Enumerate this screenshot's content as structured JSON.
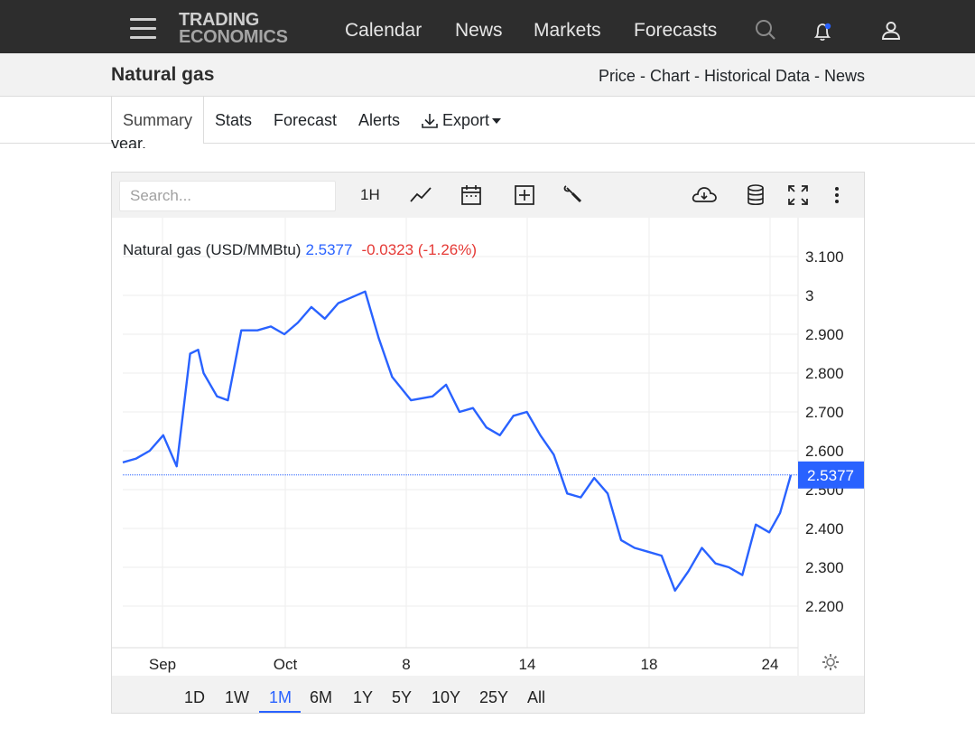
{
  "brand": {
    "line1": "TRADING",
    "line2": "ECONOMICS"
  },
  "nav": {
    "items": [
      "Calendar",
      "News",
      "Markets",
      "Forecasts"
    ]
  },
  "icons": {
    "menu": "hamburger-menu-icon",
    "search": "search-icon",
    "notifications": "bell-icon",
    "account": "user-icon"
  },
  "page": {
    "title": "Natural gas",
    "sublinks": "Price - Chart - Historical Data - News",
    "partial_text": "year."
  },
  "tabs": {
    "summary": "Summary",
    "stats": "Stats",
    "forecast": "Forecast",
    "alerts": "Alerts",
    "export": "Export"
  },
  "toolbar": {
    "search_placeholder": "Search...",
    "interval": "1H"
  },
  "legend": {
    "name": "Natural gas (USD/MMBtu)",
    "price": "2.5377",
    "change": "-0.0323 (-1.26%)"
  },
  "ranges": {
    "items": [
      "1D",
      "1W",
      "1M",
      "6M",
      "1Y",
      "5Y",
      "10Y",
      "25Y",
      "All"
    ],
    "active": "1M"
  },
  "colors": {
    "line": "#2962ff",
    "negative": "#e53935",
    "nav_bg": "#2d2d2d",
    "accent": "#2962ff"
  },
  "chart_data": {
    "type": "line",
    "series": [
      {
        "name": "Natural gas (USD/MMBtu)",
        "x": [
          0,
          0.5,
          1,
          1.5,
          2,
          2.5,
          2.8,
          3,
          3.5,
          3.9,
          4.4,
          5,
          5.5,
          6,
          6.5,
          7,
          7.5,
          8,
          9,
          9.5,
          10,
          10.7,
          11.5,
          12,
          12.5,
          13,
          13.5,
          14,
          14.5,
          15,
          15.5,
          16,
          16.5,
          17,
          17.5,
          18,
          18.5,
          19,
          19.5,
          20,
          20.5,
          21,
          21.5,
          22,
          22.5,
          23,
          23.5,
          24,
          24.4,
          24.8
        ],
        "values": [
          2.57,
          2.58,
          2.6,
          2.64,
          2.56,
          2.85,
          2.86,
          2.8,
          2.74,
          2.73,
          2.91,
          2.91,
          2.92,
          2.9,
          2.93,
          2.97,
          2.94,
          2.98,
          3.01,
          2.89,
          2.79,
          2.73,
          2.74,
          2.77,
          2.7,
          2.71,
          2.66,
          2.64,
          2.69,
          2.7,
          2.64,
          2.59,
          2.49,
          2.48,
          2.53,
          2.49,
          2.37,
          2.35,
          2.34,
          2.33,
          2.24,
          2.29,
          2.35,
          2.31,
          2.3,
          2.28,
          2.41,
          2.39,
          2.44,
          2.5377
        ]
      }
    ],
    "x_tick_labels": [
      "Sep",
      "Oct",
      "8",
      "14",
      "18",
      "24"
    ],
    "y_tick_labels": [
      "3.100",
      "3",
      "2.900",
      "2.800",
      "2.700",
      "2.600",
      "2.500",
      "2.400",
      "2.300",
      "2.200"
    ],
    "ylim": [
      2.15,
      3.15
    ],
    "last_value": "2.5377",
    "grid": true
  }
}
